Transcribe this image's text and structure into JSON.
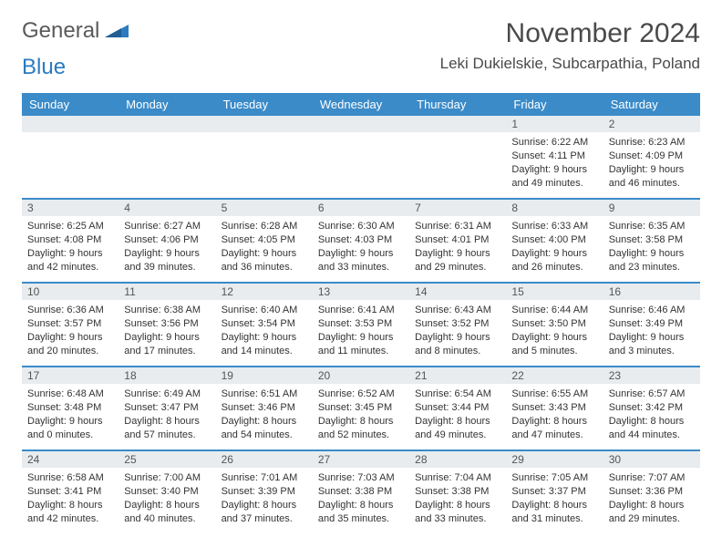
{
  "logo": {
    "text1": "General",
    "text2": "Blue",
    "color1": "#5a5a5a",
    "color2": "#2b7bbf"
  },
  "title": "November 2024",
  "location": "Leki Dukielskie, Subcarpathia, Poland",
  "header_bg": "#3b8bc9",
  "header_fg": "#ffffff",
  "daynum_bg": "#e8ecef",
  "border_color": "#3b8bc9",
  "day_headers": [
    "Sunday",
    "Monday",
    "Tuesday",
    "Wednesday",
    "Thursday",
    "Friday",
    "Saturday"
  ],
  "weeks": [
    [
      {
        "n": "",
        "sr": "",
        "ss": "",
        "dl": ""
      },
      {
        "n": "",
        "sr": "",
        "ss": "",
        "dl": ""
      },
      {
        "n": "",
        "sr": "",
        "ss": "",
        "dl": ""
      },
      {
        "n": "",
        "sr": "",
        "ss": "",
        "dl": ""
      },
      {
        "n": "",
        "sr": "",
        "ss": "",
        "dl": ""
      },
      {
        "n": "1",
        "sr": "Sunrise: 6:22 AM",
        "ss": "Sunset: 4:11 PM",
        "dl": "Daylight: 9 hours and 49 minutes."
      },
      {
        "n": "2",
        "sr": "Sunrise: 6:23 AM",
        "ss": "Sunset: 4:09 PM",
        "dl": "Daylight: 9 hours and 46 minutes."
      }
    ],
    [
      {
        "n": "3",
        "sr": "Sunrise: 6:25 AM",
        "ss": "Sunset: 4:08 PM",
        "dl": "Daylight: 9 hours and 42 minutes."
      },
      {
        "n": "4",
        "sr": "Sunrise: 6:27 AM",
        "ss": "Sunset: 4:06 PM",
        "dl": "Daylight: 9 hours and 39 minutes."
      },
      {
        "n": "5",
        "sr": "Sunrise: 6:28 AM",
        "ss": "Sunset: 4:05 PM",
        "dl": "Daylight: 9 hours and 36 minutes."
      },
      {
        "n": "6",
        "sr": "Sunrise: 6:30 AM",
        "ss": "Sunset: 4:03 PM",
        "dl": "Daylight: 9 hours and 33 minutes."
      },
      {
        "n": "7",
        "sr": "Sunrise: 6:31 AM",
        "ss": "Sunset: 4:01 PM",
        "dl": "Daylight: 9 hours and 29 minutes."
      },
      {
        "n": "8",
        "sr": "Sunrise: 6:33 AM",
        "ss": "Sunset: 4:00 PM",
        "dl": "Daylight: 9 hours and 26 minutes."
      },
      {
        "n": "9",
        "sr": "Sunrise: 6:35 AM",
        "ss": "Sunset: 3:58 PM",
        "dl": "Daylight: 9 hours and 23 minutes."
      }
    ],
    [
      {
        "n": "10",
        "sr": "Sunrise: 6:36 AM",
        "ss": "Sunset: 3:57 PM",
        "dl": "Daylight: 9 hours and 20 minutes."
      },
      {
        "n": "11",
        "sr": "Sunrise: 6:38 AM",
        "ss": "Sunset: 3:56 PM",
        "dl": "Daylight: 9 hours and 17 minutes."
      },
      {
        "n": "12",
        "sr": "Sunrise: 6:40 AM",
        "ss": "Sunset: 3:54 PM",
        "dl": "Daylight: 9 hours and 14 minutes."
      },
      {
        "n": "13",
        "sr": "Sunrise: 6:41 AM",
        "ss": "Sunset: 3:53 PM",
        "dl": "Daylight: 9 hours and 11 minutes."
      },
      {
        "n": "14",
        "sr": "Sunrise: 6:43 AM",
        "ss": "Sunset: 3:52 PM",
        "dl": "Daylight: 9 hours and 8 minutes."
      },
      {
        "n": "15",
        "sr": "Sunrise: 6:44 AM",
        "ss": "Sunset: 3:50 PM",
        "dl": "Daylight: 9 hours and 5 minutes."
      },
      {
        "n": "16",
        "sr": "Sunrise: 6:46 AM",
        "ss": "Sunset: 3:49 PM",
        "dl": "Daylight: 9 hours and 3 minutes."
      }
    ],
    [
      {
        "n": "17",
        "sr": "Sunrise: 6:48 AM",
        "ss": "Sunset: 3:48 PM",
        "dl": "Daylight: 9 hours and 0 minutes."
      },
      {
        "n": "18",
        "sr": "Sunrise: 6:49 AM",
        "ss": "Sunset: 3:47 PM",
        "dl": "Daylight: 8 hours and 57 minutes."
      },
      {
        "n": "19",
        "sr": "Sunrise: 6:51 AM",
        "ss": "Sunset: 3:46 PM",
        "dl": "Daylight: 8 hours and 54 minutes."
      },
      {
        "n": "20",
        "sr": "Sunrise: 6:52 AM",
        "ss": "Sunset: 3:45 PM",
        "dl": "Daylight: 8 hours and 52 minutes."
      },
      {
        "n": "21",
        "sr": "Sunrise: 6:54 AM",
        "ss": "Sunset: 3:44 PM",
        "dl": "Daylight: 8 hours and 49 minutes."
      },
      {
        "n": "22",
        "sr": "Sunrise: 6:55 AM",
        "ss": "Sunset: 3:43 PM",
        "dl": "Daylight: 8 hours and 47 minutes."
      },
      {
        "n": "23",
        "sr": "Sunrise: 6:57 AM",
        "ss": "Sunset: 3:42 PM",
        "dl": "Daylight: 8 hours and 44 minutes."
      }
    ],
    [
      {
        "n": "24",
        "sr": "Sunrise: 6:58 AM",
        "ss": "Sunset: 3:41 PM",
        "dl": "Daylight: 8 hours and 42 minutes."
      },
      {
        "n": "25",
        "sr": "Sunrise: 7:00 AM",
        "ss": "Sunset: 3:40 PM",
        "dl": "Daylight: 8 hours and 40 minutes."
      },
      {
        "n": "26",
        "sr": "Sunrise: 7:01 AM",
        "ss": "Sunset: 3:39 PM",
        "dl": "Daylight: 8 hours and 37 minutes."
      },
      {
        "n": "27",
        "sr": "Sunrise: 7:03 AM",
        "ss": "Sunset: 3:38 PM",
        "dl": "Daylight: 8 hours and 35 minutes."
      },
      {
        "n": "28",
        "sr": "Sunrise: 7:04 AM",
        "ss": "Sunset: 3:38 PM",
        "dl": "Daylight: 8 hours and 33 minutes."
      },
      {
        "n": "29",
        "sr": "Sunrise: 7:05 AM",
        "ss": "Sunset: 3:37 PM",
        "dl": "Daylight: 8 hours and 31 minutes."
      },
      {
        "n": "30",
        "sr": "Sunrise: 7:07 AM",
        "ss": "Sunset: 3:36 PM",
        "dl": "Daylight: 8 hours and 29 minutes."
      }
    ]
  ]
}
